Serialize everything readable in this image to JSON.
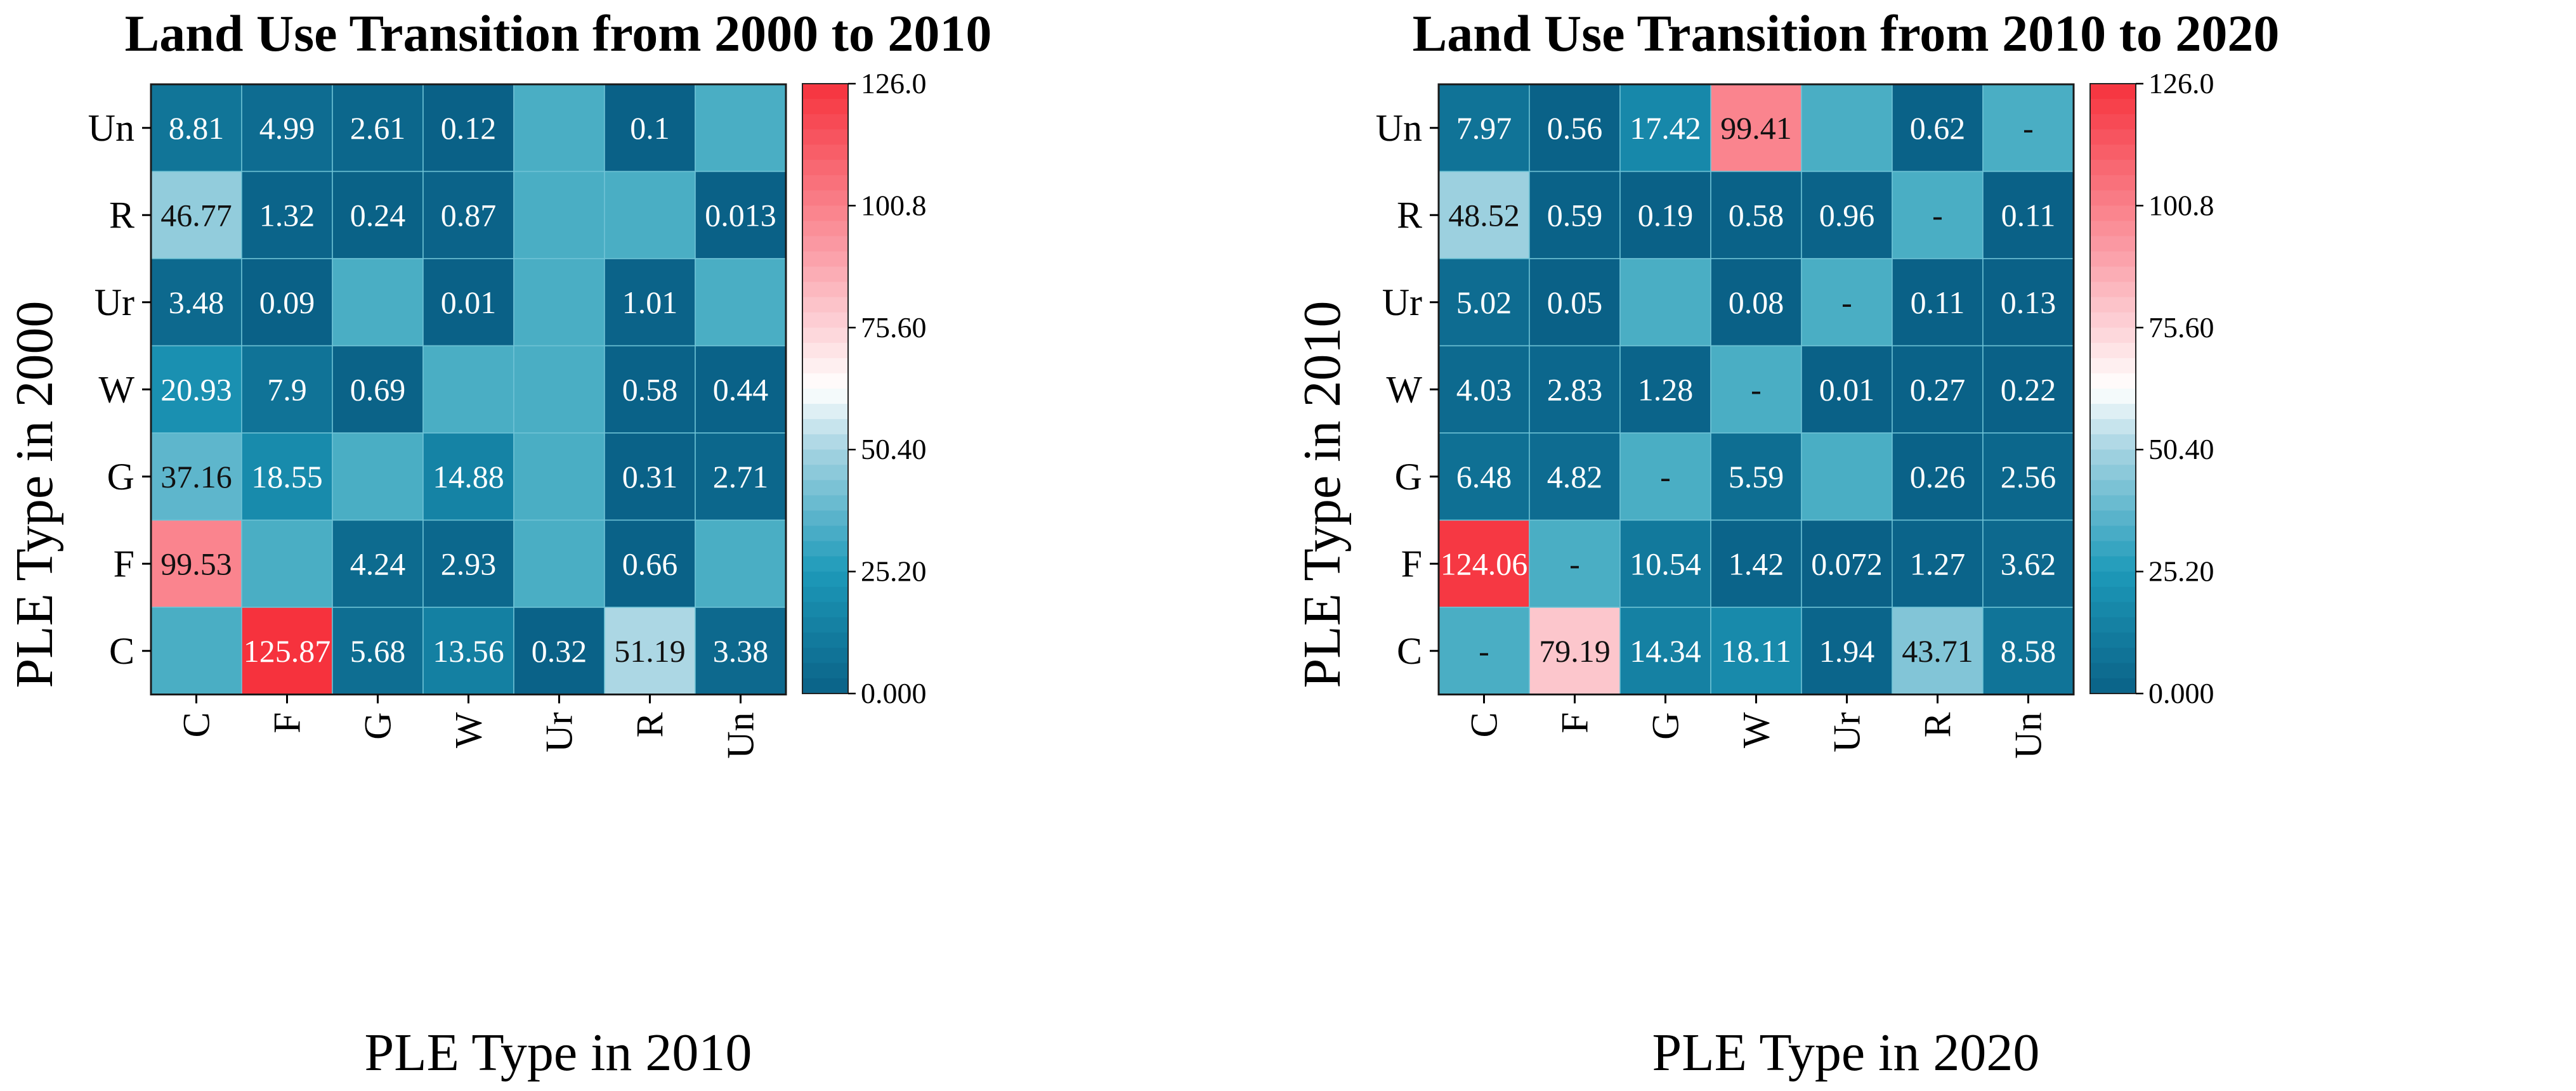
{
  "colors": {
    "low": "#0a6187",
    "mid1": "#1d9ab9",
    "mid2": "#a6d4e2",
    "center": "#ffffff",
    "high1": "#fba7b0",
    "high": "#f6323d",
    "empty": "#4aaec4"
  },
  "chart_data": [
    {
      "type": "heatmap",
      "title": "Land Use Transition from 2000 to 2010",
      "xlabel": "PLE Type in 2010",
      "ylabel": "PLE Type in 2000",
      "x_categories": [
        "C",
        "F",
        "G",
        "W",
        "Ur",
        "R",
        "Un"
      ],
      "y_categories": [
        "Un",
        "R",
        "Ur",
        "W",
        "G",
        "F",
        "C"
      ],
      "values": [
        [
          8.81,
          4.99,
          2.61,
          0.12,
          null,
          0.1,
          null
        ],
        [
          46.77,
          1.32,
          0.24,
          0.87,
          null,
          null,
          0.013
        ],
        [
          3.48,
          0.09,
          null,
          0.01,
          null,
          1.01,
          null
        ],
        [
          20.93,
          7.9,
          0.69,
          null,
          null,
          0.58,
          0.44
        ],
        [
          37.16,
          18.55,
          null,
          14.88,
          null,
          0.31,
          2.71
        ],
        [
          99.53,
          null,
          4.24,
          2.93,
          null,
          0.66,
          null
        ],
        [
          null,
          125.87,
          5.68,
          13.56,
          0.32,
          51.19,
          3.38
        ]
      ],
      "labels": [
        [
          "8.81",
          "4.99",
          "2.61",
          "0.12",
          "",
          "0.1",
          ""
        ],
        [
          "46.77",
          "1.32",
          "0.24",
          "0.87",
          "",
          "",
          "0.013"
        ],
        [
          "3.48",
          "0.09",
          "",
          "0.01",
          "",
          "1.01",
          ""
        ],
        [
          "20.93",
          "7.9",
          "0.69",
          "",
          "",
          "0.58",
          "0.44"
        ],
        [
          "37.16",
          "18.55",
          "",
          "14.88",
          "",
          "0.31",
          "2.71"
        ],
        [
          "99.53",
          "",
          "4.24",
          "2.93",
          "",
          "0.66",
          ""
        ],
        [
          "",
          "125.87",
          "5.68",
          "13.56",
          "0.32",
          "51.19",
          "3.38"
        ]
      ],
      "colorbar": {
        "min": 0,
        "max": 126,
        "tick_values": [
          126,
          100.8,
          75.6,
          50.4,
          25.2,
          0
        ],
        "tick_labels": [
          "126.0",
          "100.8",
          "75.60",
          "50.40",
          "25.20",
          "0.000"
        ]
      }
    },
    {
      "type": "heatmap",
      "title": "Land Use Transition from 2010 to 2020",
      "xlabel": "PLE Type in 2020",
      "ylabel": "PLE Type in 2010",
      "x_categories": [
        "C",
        "F",
        "G",
        "W",
        "Ur",
        "R",
        "Un"
      ],
      "y_categories": [
        "Un",
        "R",
        "Ur",
        "W",
        "G",
        "F",
        "C"
      ],
      "values": [
        [
          7.97,
          0.56,
          17.42,
          99.41,
          null,
          0.62,
          null
        ],
        [
          48.52,
          0.59,
          0.19,
          0.58,
          0.96,
          null,
          0.11
        ],
        [
          5.02,
          0.05,
          null,
          0.08,
          null,
          0.11,
          0.13
        ],
        [
          4.03,
          2.83,
          1.28,
          null,
          0.01,
          0.27,
          0.22
        ],
        [
          6.48,
          4.82,
          null,
          5.59,
          null,
          0.26,
          2.56
        ],
        [
          124.06,
          null,
          10.54,
          1.42,
          0.072,
          1.27,
          3.62
        ],
        [
          null,
          79.19,
          14.34,
          18.11,
          1.94,
          43.71,
          8.58
        ]
      ],
      "labels": [
        [
          "7.97",
          "0.56",
          "17.42",
          "99.41",
          "",
          "0.62",
          "-"
        ],
        [
          "48.52",
          "0.59",
          "0.19",
          "0.58",
          "0.96",
          "-",
          "0.11"
        ],
        [
          "5.02",
          "0.05",
          "",
          "0.08",
          "-",
          "0.11",
          "0.13"
        ],
        [
          "4.03",
          "2.83",
          "1.28",
          "-",
          "0.01",
          "0.27",
          "0.22"
        ],
        [
          "6.48",
          "4.82",
          "-",
          "5.59",
          "",
          "0.26",
          "2.56"
        ],
        [
          "124.06",
          "-",
          "10.54",
          "1.42",
          "0.072",
          "1.27",
          "3.62"
        ],
        [
          "-",
          "79.19",
          "14.34",
          "18.11",
          "1.94",
          "43.71",
          "8.58"
        ]
      ],
      "colorbar": {
        "min": 0,
        "max": 126,
        "tick_values": [
          126,
          100.8,
          75.6,
          50.4,
          25.2,
          0
        ],
        "tick_labels": [
          "126.0",
          "100.8",
          "75.60",
          "50.40",
          "25.20",
          "0.000"
        ]
      }
    }
  ]
}
